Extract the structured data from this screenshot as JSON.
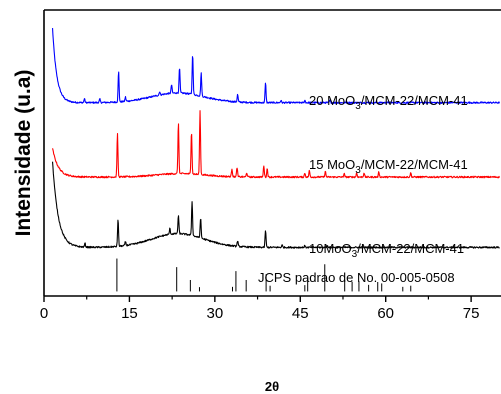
{
  "chart_data": {
    "type": "line",
    "xlabel": "2θ",
    "ylabel": "Intensidade (u.a)",
    "xlim": [
      0,
      80
    ],
    "ylim": [
      0,
      100
    ],
    "x_ticks": [
      0,
      15,
      30,
      45,
      60,
      75
    ],
    "x_tick_labels": [
      "0",
      "15",
      "30",
      "45",
      "60",
      "75"
    ],
    "y_tick_labels": false,
    "grid": false,
    "series": [
      {
        "label_parts": [
          "20 MoO",
          "3",
          "/MCM-22/MCM-41"
        ],
        "color": "#0000ff",
        "baseline": 67.6,
        "decay_amp": 26.0,
        "decay_tau": 0.75,
        "hump_amp": 3.4,
        "hump_center": 23.5,
        "hump_width": 6.5,
        "noise": 0.55,
        "peaks": [
          [
            7.1,
            1.4
          ],
          [
            9.8,
            1.2
          ],
          [
            13.1,
            10.6
          ],
          [
            14.3,
            1.5
          ],
          [
            20.3,
            1.2
          ],
          [
            22.4,
            3.0
          ],
          [
            23.8,
            8.8
          ],
          [
            26.1,
            14.3
          ],
          [
            27.6,
            8.0
          ],
          [
            34.0,
            2.6
          ],
          [
            38.9,
            6.9
          ],
          [
            41.6,
            0.8
          ],
          [
            45.8,
            0.8
          ],
          [
            50.2,
            0.8
          ]
        ]
      },
      {
        "label_parts": [
          "15 MoO",
          "3",
          "/MCM-22/MCM-41"
        ],
        "color": "#ff0000",
        "baseline": 41.6,
        "decay_amp": 10.0,
        "decay_tau": 1.0,
        "hump_amp": 1.2,
        "hump_center": 24.0,
        "hump_width": 6.0,
        "noise": 0.55,
        "peaks": [
          [
            12.9,
            15.0
          ],
          [
            23.6,
            17.6
          ],
          [
            25.9,
            15.0
          ],
          [
            27.4,
            22.2
          ],
          [
            33.0,
            2.8
          ],
          [
            33.9,
            3.3
          ],
          [
            35.6,
            1.5
          ],
          [
            38.6,
            4.0
          ],
          [
            39.2,
            3.0
          ],
          [
            45.8,
            1.4
          ],
          [
            46.6,
            2.2
          ],
          [
            49.4,
            2.0
          ],
          [
            52.7,
            1.2
          ],
          [
            54.9,
            1.4
          ],
          [
            56.2,
            1.5
          ],
          [
            58.8,
            1.8
          ],
          [
            64.4,
            1.5
          ]
        ]
      },
      {
        "label_parts": [
          "10MoO",
          "3",
          "/MCM-22/MCM-41"
        ],
        "color": "#000000",
        "baseline": 17.0,
        "decay_amp": 30.0,
        "decay_tau": 1.0,
        "hump_amp": 4.8,
        "hump_center": 23.5,
        "hump_width": 6.5,
        "noise": 0.55,
        "peaks": [
          [
            7.2,
            1.3
          ],
          [
            13.0,
            9.4
          ],
          [
            14.3,
            1.4
          ],
          [
            22.1,
            2.0
          ],
          [
            23.6,
            6.4
          ],
          [
            26.0,
            12.0
          ],
          [
            27.5,
            7.0
          ],
          [
            34.0,
            2.0
          ],
          [
            38.9,
            6.0
          ],
          [
            41.8,
            0.8
          ],
          [
            45.8,
            0.6
          ],
          [
            49.8,
            0.6
          ]
        ]
      }
    ],
    "reference": {
      "label": "JCPS padrao de No. 00-005-0508",
      "color": "#000000",
      "baseline": 1.6,
      "sticks": [
        [
          12.8,
          11.5
        ],
        [
          23.3,
          8.5
        ],
        [
          25.7,
          4.0
        ],
        [
          27.3,
          1.5
        ],
        [
          33.1,
          1.6
        ],
        [
          33.7,
          7.1
        ],
        [
          35.5,
          4.0
        ],
        [
          39.0,
          6.0
        ],
        [
          39.7,
          2.0
        ],
        [
          45.8,
          2.2
        ],
        [
          46.3,
          4.5
        ],
        [
          49.3,
          9.5
        ],
        [
          52.8,
          4.0
        ],
        [
          54.1,
          3.4
        ],
        [
          55.3,
          3.6
        ],
        [
          57.0,
          2.3
        ],
        [
          58.6,
          3.3
        ],
        [
          59.3,
          2.8
        ],
        [
          63.0,
          1.6
        ],
        [
          64.4,
          2.0
        ]
      ]
    }
  }
}
